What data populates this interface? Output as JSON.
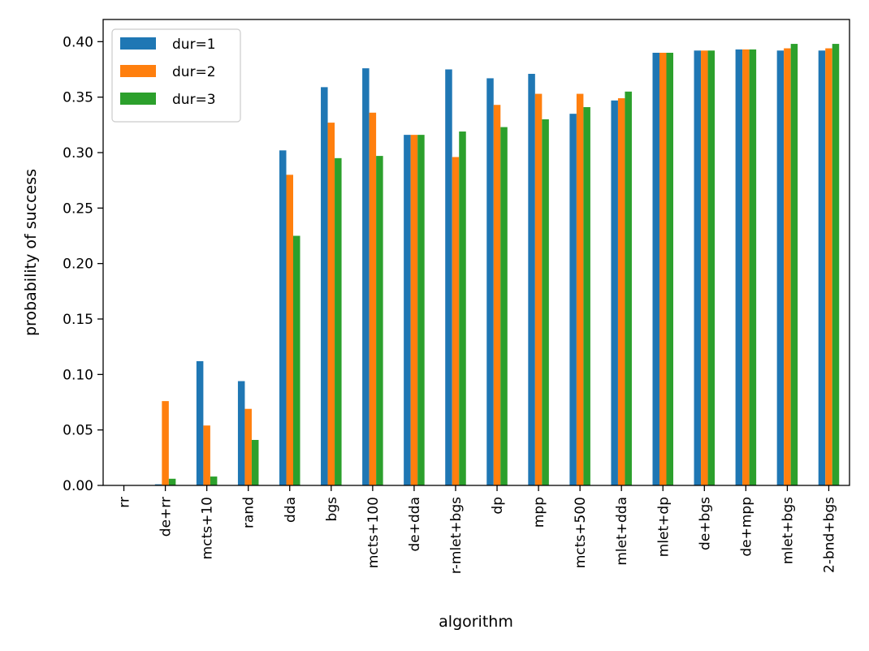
{
  "chart_data": {
    "type": "bar",
    "title": "",
    "xlabel": "algorithm",
    "ylabel": "probability of success",
    "ylim": [
      0,
      0.42
    ],
    "yticks": [
      "0.00",
      "0.05",
      "0.10",
      "0.15",
      "0.20",
      "0.25",
      "0.30",
      "0.35",
      "0.40"
    ],
    "ytick_values": [
      0,
      0.05,
      0.1,
      0.15,
      0.2,
      0.25,
      0.3,
      0.35,
      0.4
    ],
    "categories": [
      "rr",
      "de+rr",
      "mcts+10",
      "rand",
      "dda",
      "bgs",
      "mcts+100",
      "de+dda",
      "r-mlet+bgs",
      "dp",
      "mpp",
      "mcts+500",
      "mlet+dda",
      "mlet+dp",
      "de+bgs",
      "de+mpp",
      "mlet+bgs",
      "2-bnd+bgs"
    ],
    "series": [
      {
        "name": "dur=1",
        "color": "#1f77b4",
        "values": [
          0.0,
          0.001,
          0.112,
          0.094,
          0.302,
          0.359,
          0.376,
          0.316,
          0.375,
          0.367,
          0.371,
          0.335,
          0.347,
          0.39,
          0.392,
          0.393,
          0.392,
          0.392
        ]
      },
      {
        "name": "dur=2",
        "color": "#ff7f0e",
        "values": [
          0.0,
          0.076,
          0.054,
          0.069,
          0.28,
          0.327,
          0.336,
          0.316,
          0.296,
          0.343,
          0.353,
          0.353,
          0.349,
          0.39,
          0.392,
          0.393,
          0.394,
          0.394
        ]
      },
      {
        "name": "dur=3",
        "color": "#2ca02c",
        "values": [
          0.0,
          0.006,
          0.008,
          0.041,
          0.225,
          0.295,
          0.297,
          0.316,
          0.319,
          0.323,
          0.33,
          0.341,
          0.355,
          0.39,
          0.392,
          0.393,
          0.398,
          0.398
        ]
      }
    ],
    "grid": false,
    "legend_position": "top-left"
  }
}
